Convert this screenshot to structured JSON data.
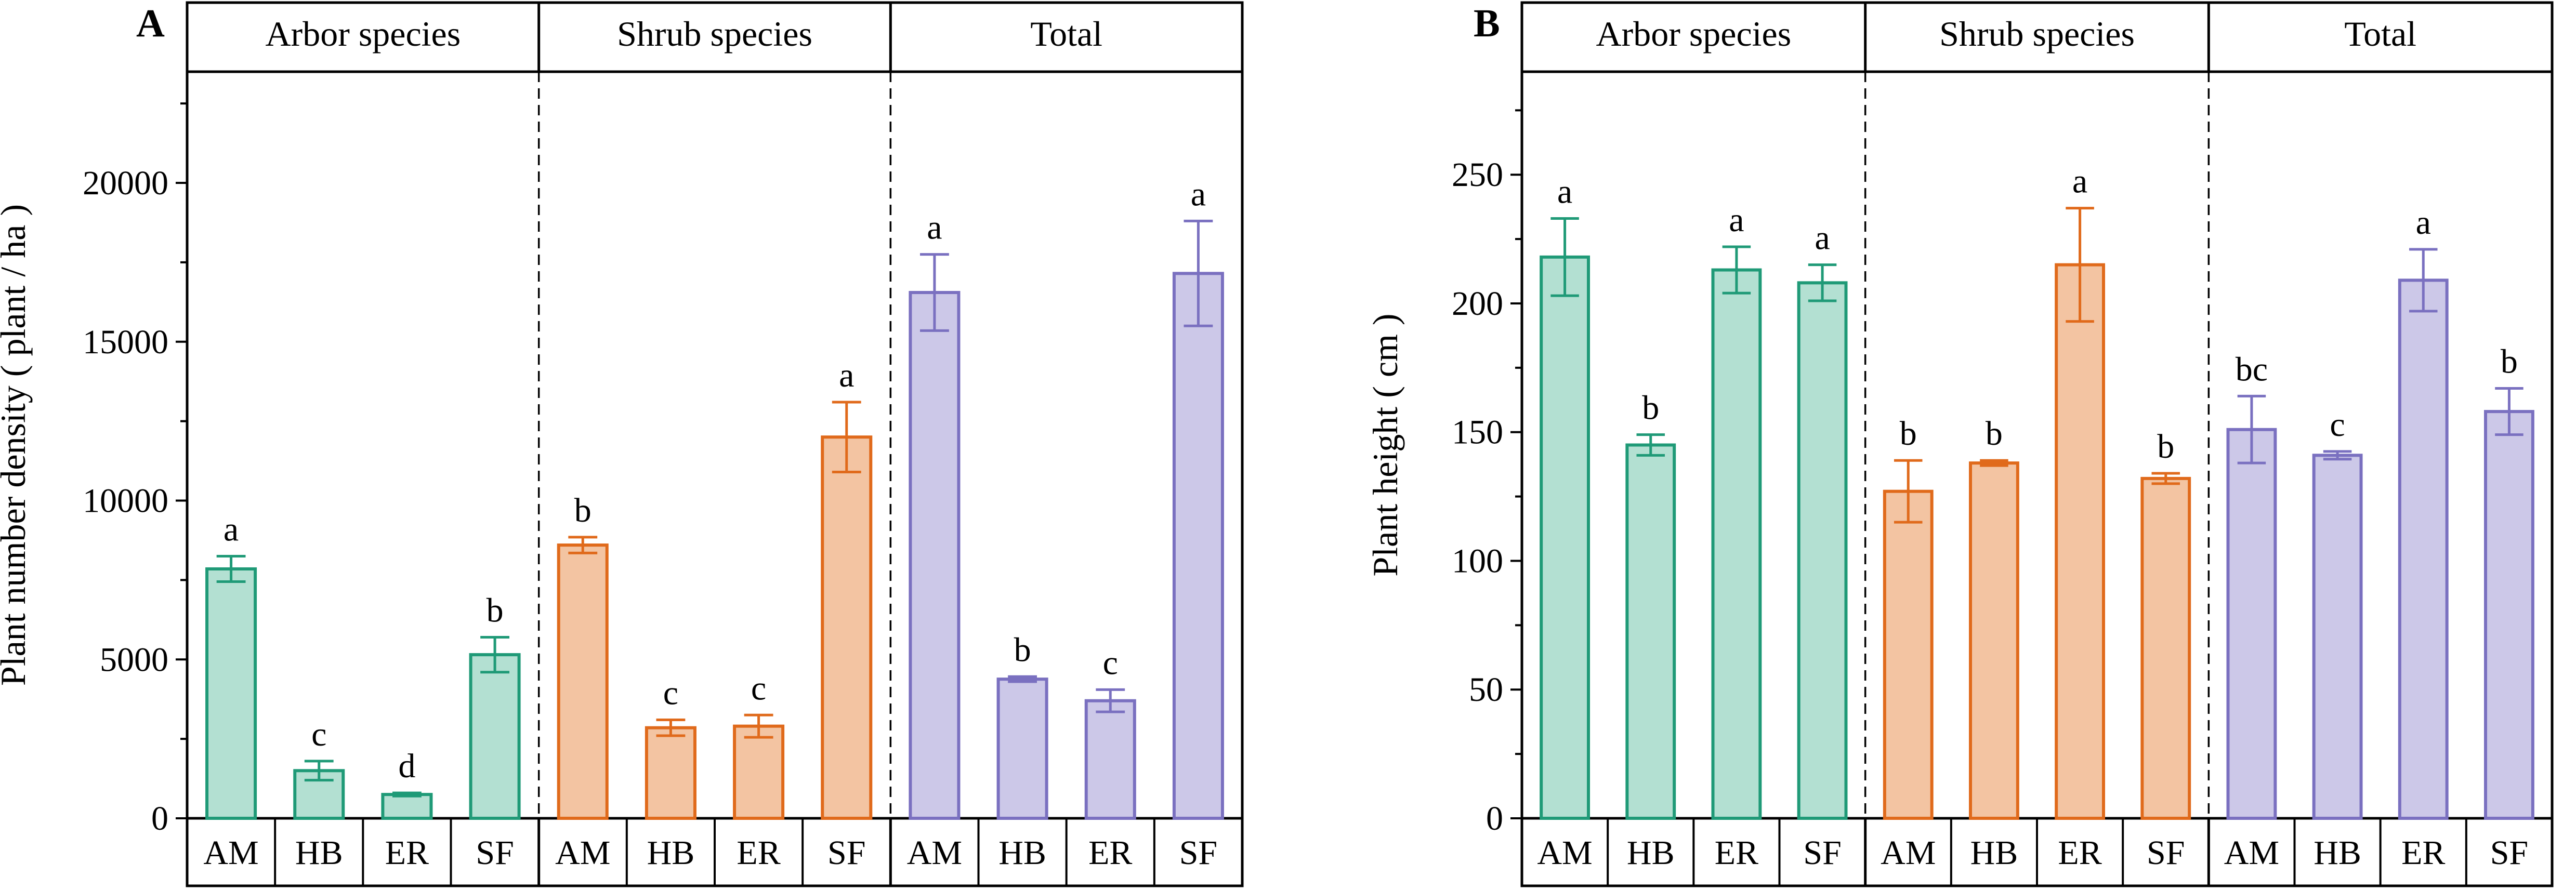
{
  "colors": {
    "arbor_stroke": "#1f9a77",
    "arbor_fill": "#b3e0d2",
    "shrub_stroke": "#e06a1b",
    "shrub_fill": "#f3c4a2",
    "total_stroke": "#7a70c0",
    "total_fill": "#ccc8e8",
    "axis": "#000000"
  },
  "chart_data": [
    {
      "type": "bar",
      "panel": "A",
      "ylabel": "Plant number density ( plant / ha )",
      "ylim": [
        0,
        23500
      ],
      "yticks": [
        0,
        5000,
        10000,
        15000,
        20000
      ],
      "yticklabels": [
        "0",
        "5000",
        "10000",
        "15000",
        "20000"
      ],
      "groups": [
        {
          "name": "Arbor species",
          "color_key": "arbor",
          "categories": [
            "AM",
            "HB",
            "ER",
            "SF"
          ],
          "values": [
            7850,
            1500,
            750,
            5150
          ],
          "errors": [
            400,
            300,
            50,
            550
          ],
          "letters": [
            "a",
            "c",
            "d",
            "b"
          ]
        },
        {
          "name": "Shrub species",
          "color_key": "shrub",
          "categories": [
            "AM",
            "HB",
            "ER",
            "SF"
          ],
          "values": [
            8600,
            2850,
            2900,
            12000
          ],
          "errors": [
            250,
            250,
            350,
            1100
          ],
          "letters": [
            "b",
            "c",
            "c",
            "a"
          ]
        },
        {
          "name": "Total",
          "color_key": "total",
          "categories": [
            "AM",
            "HB",
            "ER",
            "SF"
          ],
          "values": [
            16550,
            4380,
            3700,
            17150
          ],
          "errors": [
            1200,
            80,
            350,
            1650
          ],
          "letters": [
            "a",
            "b",
            "c",
            "a"
          ]
        }
      ]
    },
    {
      "type": "bar",
      "panel": "B",
      "ylabel": "Plant height ( cm )",
      "ylim": [
        0,
        290
      ],
      "yticks": [
        0,
        50,
        100,
        150,
        200,
        250
      ],
      "yticklabels": [
        "0",
        "50",
        "100",
        "150",
        "200",
        "250"
      ],
      "groups": [
        {
          "name": "Arbor species",
          "color_key": "arbor",
          "categories": [
            "AM",
            "HB",
            "ER",
            "SF"
          ],
          "values": [
            218,
            145,
            213,
            208
          ],
          "errors": [
            15,
            4,
            9,
            7
          ],
          "letters": [
            "a",
            "b",
            "a",
            "a"
          ]
        },
        {
          "name": "Shrub species",
          "color_key": "shrub",
          "categories": [
            "AM",
            "HB",
            "ER",
            "SF"
          ],
          "values": [
            127,
            138,
            215,
            132
          ],
          "errors": [
            12,
            1,
            22,
            2
          ],
          "letters": [
            "b",
            "b",
            "a",
            "b"
          ]
        },
        {
          "name": "Total",
          "color_key": "total",
          "categories": [
            "AM",
            "HB",
            "ER",
            "SF"
          ],
          "values": [
            151,
            141,
            209,
            158
          ],
          "errors": [
            13,
            1.5,
            12,
            9
          ],
          "letters": [
            "bc",
            "c",
            "a",
            "b"
          ]
        }
      ]
    }
  ]
}
